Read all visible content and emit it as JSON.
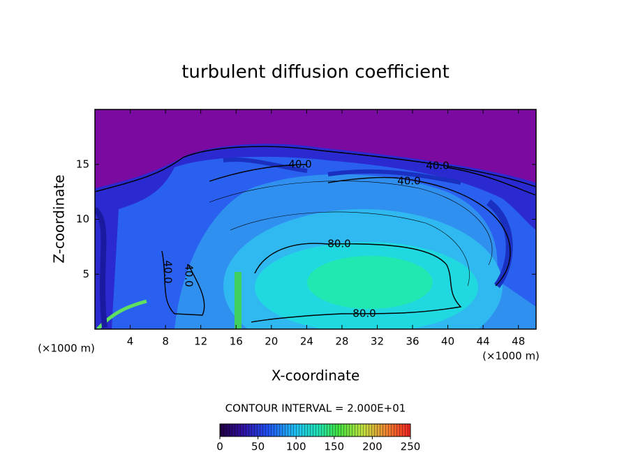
{
  "chart_data": {
    "type": "contour",
    "title": "turbulent diffusion coefficient",
    "x_label": "X-coordinate",
    "y_label": "Z-coordinate",
    "x_unit_left": "(×1000 m)",
    "x_unit_right": "(×1000 m)",
    "contour_interval": "CONTOUR INTERVAL = 2.000E+01",
    "contour_labels": [
      "40.0",
      "40.0",
      "40.0",
      "40.0",
      "40.0",
      "80.0",
      "80.0"
    ],
    "xlim": [
      0,
      50
    ],
    "xticks": [
      4,
      8,
      12,
      16,
      20,
      24,
      28,
      32,
      36,
      40,
      44,
      48
    ],
    "ylim": [
      0,
      20
    ],
    "yticks": [
      5,
      10,
      15
    ],
    "clim": [
      0,
      250
    ],
    "cticks": [
      0,
      50,
      100,
      150,
      200,
      250
    ]
  }
}
